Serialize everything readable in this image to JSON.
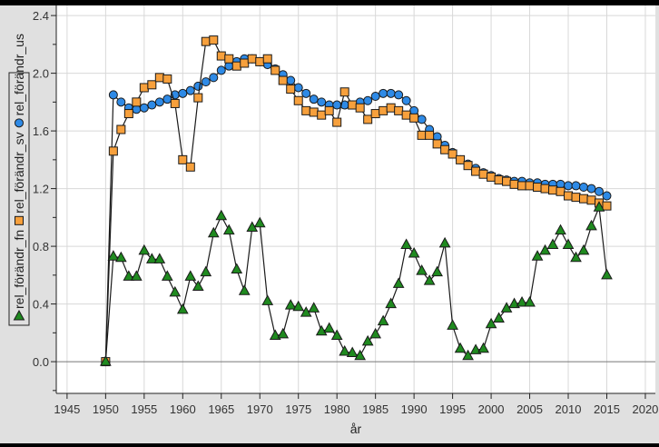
{
  "chart_data": {
    "type": "line",
    "title": "",
    "xlabel": "år",
    "ylabel": "",
    "xlim": [
      1943.6,
      2021.3
    ],
    "ylim": [
      -0.22,
      2.47
    ],
    "xticks": [
      1945,
      1950,
      1955,
      1960,
      1965,
      1970,
      1975,
      1980,
      1985,
      1990,
      1995,
      2000,
      2005,
      2010,
      2015,
      2020
    ],
    "yticks": [
      "0.0",
      "0.4",
      "0.8",
      "1.2",
      "1.6",
      "2.0",
      "2.4"
    ],
    "grid": true,
    "legend_position": "left-vertical",
    "x": [
      1950,
      1951,
      1952,
      1953,
      1954,
      1955,
      1956,
      1957,
      1958,
      1959,
      1960,
      1961,
      1962,
      1963,
      1964,
      1965,
      1966,
      1967,
      1968,
      1969,
      1970,
      1971,
      1972,
      1973,
      1974,
      1975,
      1976,
      1977,
      1978,
      1979,
      1980,
      1981,
      1982,
      1983,
      1984,
      1985,
      1986,
      1987,
      1988,
      1989,
      1990,
      1991,
      1992,
      1993,
      1994,
      1995,
      1996,
      1997,
      1998,
      1999,
      2000,
      2001,
      2002,
      2003,
      2004,
      2005,
      2006,
      2007,
      2008,
      2009,
      2010,
      2011,
      2012,
      2013,
      2014,
      2015
    ],
    "series": [
      {
        "name": "rel_förändr_fn",
        "marker": "triangle",
        "color": "#1f8a1f",
        "values": [
          0,
          0.73,
          0.72,
          0.59,
          0.59,
          0.77,
          0.71,
          0.71,
          0.59,
          0.48,
          0.36,
          0.59,
          0.52,
          0.62,
          0.89,
          1.01,
          0.91,
          0.64,
          0.49,
          0.93,
          0.96,
          0.42,
          0.18,
          0.19,
          0.39,
          0.38,
          0.34,
          0.37,
          0.21,
          0.23,
          0.18,
          0.07,
          0.06,
          0.04,
          0.14,
          0.19,
          0.28,
          0.4,
          0.54,
          0.81,
          0.75,
          0.63,
          0.56,
          0.62,
          0.82,
          0.25,
          0.09,
          0.04,
          0.08,
          0.09,
          0.26,
          0.3,
          0.37,
          0.4,
          0.41,
          0.41,
          0.73,
          0.77,
          0.81,
          0.91,
          0.81,
          0.72,
          0.77,
          0.94,
          1.07,
          0.6
        ]
      },
      {
        "name": "rel_förändr_sv",
        "marker": "square",
        "color": "#f7a03c",
        "values": [
          0,
          1.46,
          1.61,
          1.72,
          1.8,
          1.9,
          1.92,
          1.97,
          1.96,
          1.79,
          1.4,
          1.35,
          1.83,
          2.22,
          2.23,
          2.12,
          2.1,
          2.05,
          2.07,
          2.1,
          2.08,
          2.1,
          2.02,
          1.95,
          1.89,
          1.81,
          1.74,
          1.73,
          1.71,
          1.74,
          1.66,
          1.87,
          1.78,
          1.76,
          1.68,
          1.72,
          1.74,
          1.76,
          1.74,
          1.71,
          1.69,
          1.57,
          1.57,
          1.51,
          1.47,
          1.44,
          1.4,
          1.36,
          1.32,
          1.3,
          1.28,
          1.26,
          1.25,
          1.23,
          1.22,
          1.22,
          1.21,
          1.2,
          1.19,
          1.18,
          1.15,
          1.14,
          1.13,
          1.12,
          1.1,
          1.08
        ]
      },
      {
        "name": "rel_förändr_us",
        "marker": "circle",
        "color": "#2e8ae6",
        "values": [
          0,
          1.85,
          1.8,
          1.76,
          1.75,
          1.76,
          1.78,
          1.8,
          1.82,
          1.85,
          1.86,
          1.88,
          1.91,
          1.94,
          1.97,
          2.02,
          2.05,
          2.08,
          2.1,
          2.1,
          2.08,
          2.06,
          2.03,
          1.99,
          1.95,
          1.9,
          1.86,
          1.82,
          1.8,
          1.78,
          1.78,
          1.78,
          1.78,
          1.8,
          1.81,
          1.84,
          1.86,
          1.86,
          1.85,
          1.81,
          1.74,
          1.68,
          1.61,
          1.56,
          1.5,
          1.45,
          1.4,
          1.37,
          1.34,
          1.31,
          1.29,
          1.27,
          1.26,
          1.25,
          1.25,
          1.24,
          1.24,
          1.23,
          1.23,
          1.23,
          1.22,
          1.22,
          1.21,
          1.2,
          1.18,
          1.15
        ]
      }
    ]
  }
}
